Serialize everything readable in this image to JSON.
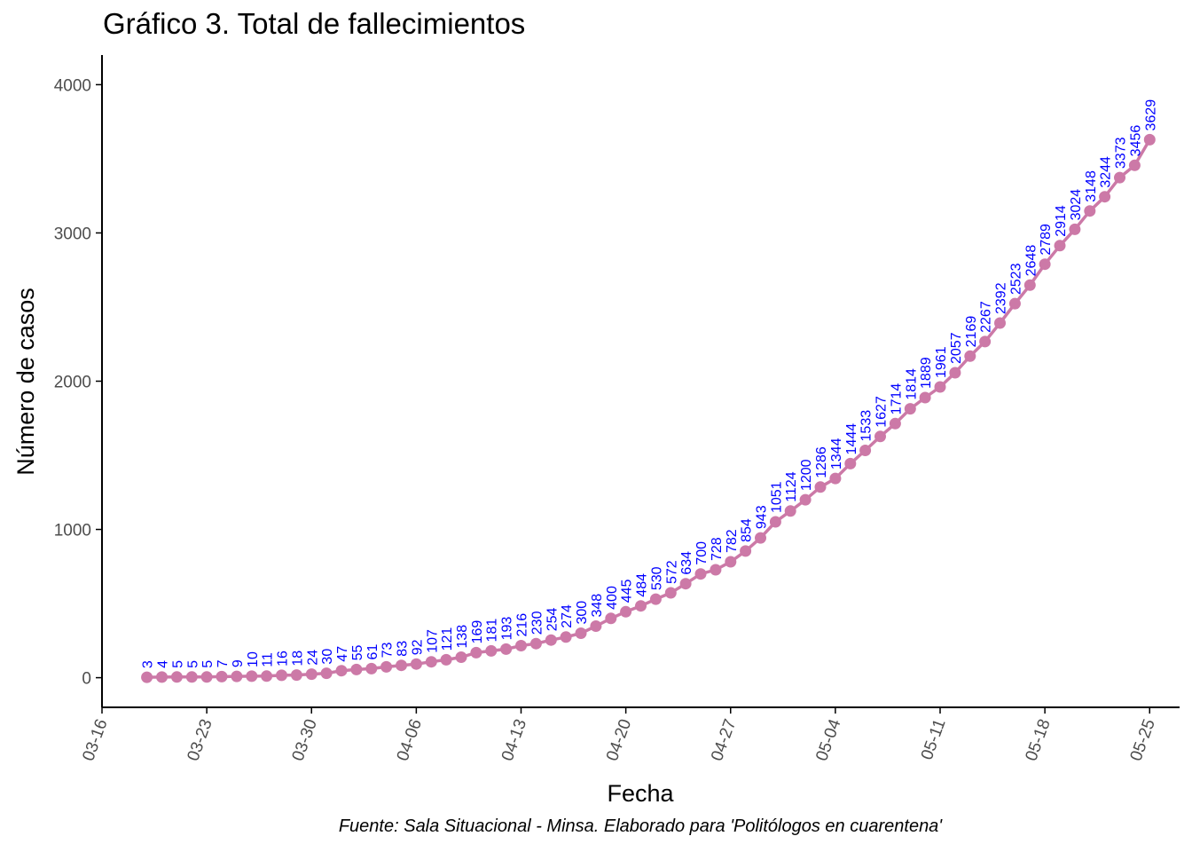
{
  "title": "Gráfico 3. Total de fallecimientos",
  "caption": "Fuente: Sala Situacional - Minsa. Elaborado para 'Politólogos en cuarentena'",
  "colors": {
    "line": "#cc79a7",
    "label": "#0000ff",
    "axis": "#000000"
  },
  "chart_data": {
    "type": "line",
    "title": "Gráfico 3. Total de fallecimientos",
    "xlabel": "Fecha",
    "ylabel": "Número de casos",
    "x_start": "2020-03-19",
    "x_end": "2020-05-25",
    "xlim": [
      "2020-03-16",
      "2020-05-27"
    ],
    "ylim": [
      -200,
      4200
    ],
    "x_ticks": [
      "03-16",
      "03-23",
      "03-30",
      "04-06",
      "04-13",
      "04-20",
      "04-27",
      "05-04",
      "05-11",
      "05-18",
      "05-25"
    ],
    "y_ticks": [
      0,
      1000,
      2000,
      3000,
      4000
    ],
    "grid": false,
    "series": [
      {
        "values": [
          3,
          4,
          5,
          5,
          5,
          7,
          9,
          10,
          11,
          16,
          18,
          24,
          30,
          47,
          55,
          61,
          73,
          83,
          92,
          107,
          121,
          138,
          169,
          181,
          193,
          216,
          230,
          254,
          274,
          300,
          348,
          400,
          445,
          484,
          530,
          572,
          634,
          700,
          728,
          782,
          854,
          943,
          1051,
          1124,
          1200,
          1286,
          1344,
          1444,
          1533,
          1627,
          1714,
          1814,
          1889,
          1961,
          2057,
          2169,
          2267,
          2392,
          2523,
          2648,
          2789,
          2914,
          3024,
          3148,
          3244,
          3373,
          3456,
          3629
        ]
      }
    ]
  }
}
